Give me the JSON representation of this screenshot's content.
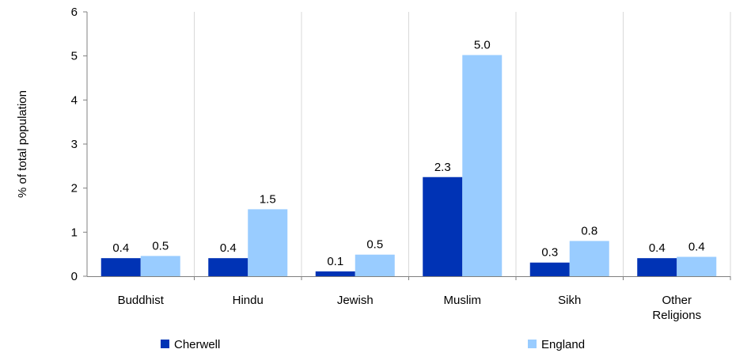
{
  "chart_data": {
    "type": "bar",
    "categories": [
      [
        "Buddhist"
      ],
      [
        "Hindu"
      ],
      [
        "Jewish"
      ],
      [
        "Muslim"
      ],
      [
        "Sikh"
      ],
      [
        "Other",
        "Religions"
      ]
    ],
    "series": [
      {
        "name": "Cherwell",
        "color": "#0033b5",
        "values": [
          0.4,
          0.4,
          0.1,
          2.3,
          0.3,
          0.4
        ]
      },
      {
        "name": "England",
        "color": "#99ccff",
        "values": [
          0.5,
          1.5,
          0.5,
          5.0,
          0.8,
          0.4
        ]
      }
    ],
    "bar_heights": [
      [
        0.41,
        0.41,
        0.11,
        2.25,
        0.31,
        0.41
      ],
      [
        0.46,
        1.52,
        0.49,
        5.02,
        0.8,
        0.44
      ]
    ],
    "data_labels": [
      [
        "0.4",
        "0.4",
        "0.1",
        "2.3",
        "0.3",
        "0.4"
      ],
      [
        "0.5",
        "1.5",
        "0.5",
        "5.0",
        "0.8",
        "0.4"
      ]
    ],
    "xlabel": "",
    "ylabel": "% of total population",
    "ylim": [
      0,
      6
    ],
    "yticks": [
      "0",
      "1",
      "2",
      "3",
      "4",
      "5",
      "6"
    ],
    "grid": "vertical separators between categories",
    "legend": "bottom"
  }
}
